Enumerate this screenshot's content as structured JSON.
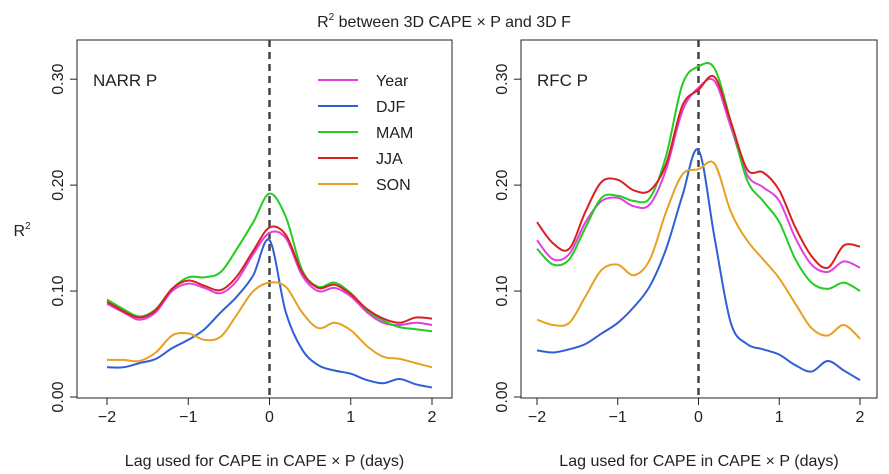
{
  "title": {
    "prefix": "R",
    "sup": "2",
    "suffix": " between 3D CAPE × P and 3D F"
  },
  "ylabel": {
    "base": "R",
    "sup": "2"
  },
  "colors": {
    "Year": "#e040e0",
    "DJF": "#2e5fd6",
    "MAM": "#22cc22",
    "JJA": "#d92020",
    "SON": "#e8a020"
  },
  "chart_data": [
    {
      "type": "line",
      "panel_label": "NARR P",
      "xlabel": "Lag used for CAPE in CAPE × P  (days)",
      "xlim": [
        -2,
        2
      ],
      "ylim": [
        0,
        0.32
      ],
      "xticks": [
        "−2",
        "−1",
        "0",
        "1",
        "2"
      ],
      "yticks": [
        "0.00",
        "0.10",
        "0.20",
        "0.30"
      ],
      "ytick_values": [
        0.0,
        0.1,
        0.2,
        0.3
      ],
      "xtick_values": [
        -2,
        -1,
        0,
        1,
        2
      ],
      "vline_x": 0,
      "legend": [
        "Year",
        "DJF",
        "MAM",
        "JJA",
        "SON"
      ],
      "legend_position": "top-right",
      "x": [
        -2,
        -1.8,
        -1.6,
        -1.4,
        -1.2,
        -1.0,
        -0.8,
        -0.6,
        -0.4,
        -0.2,
        0,
        0.2,
        0.4,
        0.6,
        0.8,
        1.0,
        1.2,
        1.4,
        1.6,
        1.8,
        2.0
      ],
      "series": [
        {
          "name": "Year",
          "values": [
            0.088,
            0.08,
            0.073,
            0.08,
            0.1,
            0.107,
            0.103,
            0.098,
            0.11,
            0.135,
            0.155,
            0.15,
            0.115,
            0.1,
            0.103,
            0.095,
            0.08,
            0.07,
            0.068,
            0.07,
            0.068
          ]
        },
        {
          "name": "DJF",
          "values": [
            0.028,
            0.028,
            0.032,
            0.036,
            0.046,
            0.054,
            0.064,
            0.08,
            0.095,
            0.115,
            0.148,
            0.08,
            0.045,
            0.03,
            0.025,
            0.022,
            0.016,
            0.013,
            0.017,
            0.012,
            0.009
          ]
        },
        {
          "name": "MAM",
          "values": [
            0.092,
            0.083,
            0.076,
            0.083,
            0.102,
            0.113,
            0.113,
            0.118,
            0.14,
            0.165,
            0.192,
            0.17,
            0.12,
            0.104,
            0.108,
            0.098,
            0.082,
            0.072,
            0.066,
            0.064,
            0.062
          ]
        },
        {
          "name": "JJA",
          "values": [
            0.09,
            0.081,
            0.075,
            0.082,
            0.102,
            0.11,
            0.105,
            0.101,
            0.114,
            0.138,
            0.16,
            0.153,
            0.118,
            0.103,
            0.106,
            0.097,
            0.083,
            0.074,
            0.07,
            0.075,
            0.074
          ]
        },
        {
          "name": "SON",
          "values": [
            0.035,
            0.035,
            0.034,
            0.042,
            0.058,
            0.06,
            0.054,
            0.057,
            0.078,
            0.1,
            0.108,
            0.104,
            0.08,
            0.065,
            0.07,
            0.063,
            0.048,
            0.038,
            0.036,
            0.032,
            0.028
          ]
        }
      ]
    },
    {
      "type": "line",
      "panel_label": "RFC P",
      "xlabel": "Lag used for CAPE in CAPE × P  (days)",
      "xlim": [
        -2,
        2
      ],
      "ylim": [
        0,
        0.32
      ],
      "xticks": [
        "−2",
        "−1",
        "0",
        "1",
        "2"
      ],
      "yticks": [
        "0.00",
        "0.10",
        "0.20",
        "0.30"
      ],
      "ytick_values": [
        0.0,
        0.1,
        0.2,
        0.3
      ],
      "xtick_values": [
        -2,
        -1,
        0,
        1,
        2
      ],
      "vline_x": 0,
      "x": [
        -2,
        -1.8,
        -1.6,
        -1.4,
        -1.2,
        -1.0,
        -0.8,
        -0.6,
        -0.4,
        -0.2,
        0,
        0.2,
        0.4,
        0.6,
        0.8,
        1.0,
        1.2,
        1.4,
        1.6,
        1.8,
        2.0
      ],
      "series": [
        {
          "name": "Year",
          "values": [
            0.148,
            0.13,
            0.135,
            0.165,
            0.185,
            0.188,
            0.18,
            0.182,
            0.215,
            0.27,
            0.292,
            0.298,
            0.255,
            0.21,
            0.198,
            0.185,
            0.15,
            0.125,
            0.118,
            0.128,
            0.122
          ]
        },
        {
          "name": "DJF",
          "values": [
            0.044,
            0.042,
            0.045,
            0.05,
            0.06,
            0.07,
            0.085,
            0.105,
            0.14,
            0.19,
            0.233,
            0.15,
            0.07,
            0.05,
            0.045,
            0.04,
            0.03,
            0.024,
            0.034,
            0.025,
            0.016
          ]
        },
        {
          "name": "MAM",
          "values": [
            0.14,
            0.125,
            0.13,
            0.16,
            0.188,
            0.19,
            0.185,
            0.188,
            0.228,
            0.295,
            0.312,
            0.31,
            0.26,
            0.205,
            0.185,
            0.165,
            0.13,
            0.108,
            0.102,
            0.108,
            0.1
          ]
        },
        {
          "name": "JJA",
          "values": [
            0.165,
            0.145,
            0.14,
            0.175,
            0.203,
            0.205,
            0.195,
            0.195,
            0.22,
            0.275,
            0.29,
            0.302,
            0.26,
            0.215,
            0.212,
            0.195,
            0.16,
            0.133,
            0.122,
            0.143,
            0.142
          ]
        },
        {
          "name": "SON",
          "values": [
            0.073,
            0.068,
            0.07,
            0.095,
            0.12,
            0.125,
            0.115,
            0.13,
            0.175,
            0.21,
            0.215,
            0.22,
            0.175,
            0.148,
            0.13,
            0.112,
            0.088,
            0.065,
            0.058,
            0.068,
            0.055
          ]
        }
      ]
    }
  ]
}
